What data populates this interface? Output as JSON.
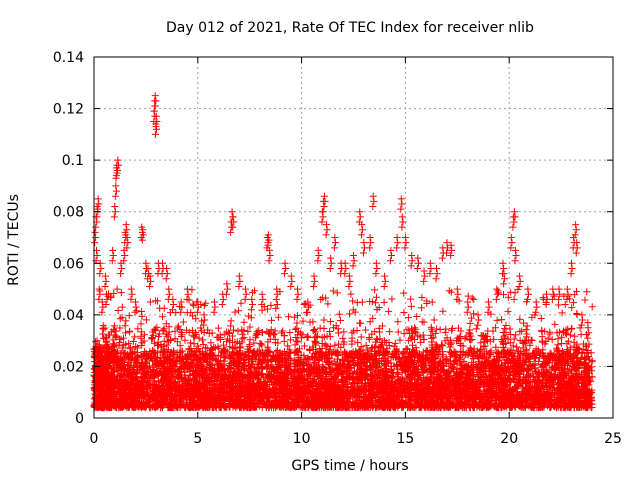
{
  "chart_data": {
    "type": "scatter",
    "title": "Day 012 of 2021, Rate Of TEC Index for receiver nlib",
    "xlabel": "GPS time / hours",
    "ylabel": "ROTI / TECUs",
    "xlim": [
      0,
      25
    ],
    "ylim": [
      0,
      0.14
    ],
    "xticks": [
      0,
      5,
      10,
      15,
      20,
      25
    ],
    "yticks": [
      0,
      0.02,
      0.04,
      0.06,
      0.08,
      0.1,
      0.12,
      0.14
    ],
    "ytick_labels": [
      "0",
      "0.02",
      "0.04",
      "0.06",
      "0.08",
      "0.1",
      "0.12",
      "0.14"
    ],
    "grid": true,
    "marker": "+",
    "marker_color": "#ff0000",
    "grid_color": "#a0a0a0",
    "series": [
      {
        "name": "ROTI",
        "points": [
          [
            0.05,
            0.072
          ],
          [
            0.1,
            0.078
          ],
          [
            0.15,
            0.082
          ],
          [
            0.2,
            0.085
          ],
          [
            0.12,
            0.065
          ],
          [
            0.3,
            0.06
          ],
          [
            0.25,
            0.05
          ],
          [
            0.4,
            0.045
          ],
          [
            0.6,
            0.048
          ],
          [
            0.55,
            0.055
          ],
          [
            0.9,
            0.065
          ],
          [
            1.0,
            0.082
          ],
          [
            1.05,
            0.09
          ],
          [
            1.1,
            0.098
          ],
          [
            1.15,
            0.1
          ],
          [
            1.08,
            0.097
          ],
          [
            1.3,
            0.06
          ],
          [
            1.5,
            0.072
          ],
          [
            1.55,
            0.075
          ],
          [
            1.6,
            0.07
          ],
          [
            1.45,
            0.065
          ],
          [
            1.8,
            0.05
          ],
          [
            2.0,
            0.045
          ],
          [
            2.3,
            0.074
          ],
          [
            2.35,
            0.073
          ],
          [
            2.5,
            0.06
          ],
          [
            2.6,
            0.058
          ],
          [
            2.9,
            0.119
          ],
          [
            2.92,
            0.123
          ],
          [
            2.95,
            0.125
          ],
          [
            2.98,
            0.114
          ],
          [
            3.0,
            0.117
          ],
          [
            2.7,
            0.055
          ],
          [
            3.1,
            0.06
          ],
          [
            3.3,
            0.06
          ],
          [
            3.5,
            0.058
          ],
          [
            3.6,
            0.05
          ],
          [
            3.8,
            0.046
          ],
          [
            4.2,
            0.045
          ],
          [
            4.5,
            0.05
          ],
          [
            5.0,
            0.045
          ],
          [
            5.3,
            0.04
          ],
          [
            5.8,
            0.045
          ],
          [
            6.2,
            0.048
          ],
          [
            6.4,
            0.052
          ],
          [
            6.6,
            0.076
          ],
          [
            6.65,
            0.08
          ],
          [
            6.7,
            0.078
          ],
          [
            7.0,
            0.055
          ],
          [
            7.3,
            0.05
          ],
          [
            7.6,
            0.046
          ],
          [
            8.1,
            0.048
          ],
          [
            8.35,
            0.07
          ],
          [
            8.4,
            0.071
          ],
          [
            8.45,
            0.065
          ],
          [
            8.8,
            0.05
          ],
          [
            9.2,
            0.06
          ],
          [
            9.5,
            0.055
          ],
          [
            9.8,
            0.05
          ],
          [
            10.3,
            0.045
          ],
          [
            10.6,
            0.055
          ],
          [
            10.8,
            0.065
          ],
          [
            11.0,
            0.08
          ],
          [
            11.05,
            0.084
          ],
          [
            11.1,
            0.086
          ],
          [
            11.2,
            0.075
          ],
          [
            11.4,
            0.062
          ],
          [
            11.6,
            0.07
          ],
          [
            11.9,
            0.06
          ],
          [
            12.1,
            0.06
          ],
          [
            12.3,
            0.055
          ],
          [
            12.5,
            0.063
          ],
          [
            12.8,
            0.08
          ],
          [
            12.9,
            0.075
          ],
          [
            13.0,
            0.068
          ],
          [
            13.3,
            0.07
          ],
          [
            13.45,
            0.086
          ],
          [
            13.6,
            0.06
          ],
          [
            14.0,
            0.055
          ],
          [
            14.3,
            0.065
          ],
          [
            14.6,
            0.07
          ],
          [
            14.8,
            0.085
          ],
          [
            14.85,
            0.078
          ],
          [
            15.0,
            0.07
          ],
          [
            15.3,
            0.063
          ],
          [
            15.6,
            0.062
          ],
          [
            15.9,
            0.057
          ],
          [
            16.2,
            0.06
          ],
          [
            16.5,
            0.058
          ],
          [
            16.8,
            0.066
          ],
          [
            17.0,
            0.068
          ],
          [
            17.2,
            0.067
          ],
          [
            17.5,
            0.05
          ],
          [
            18.0,
            0.045
          ],
          [
            18.5,
            0.04
          ],
          [
            19.0,
            0.045
          ],
          [
            19.4,
            0.05
          ],
          [
            19.7,
            0.06
          ],
          [
            19.75,
            0.056
          ],
          [
            20.1,
            0.07
          ],
          [
            20.2,
            0.078
          ],
          [
            20.25,
            0.08
          ],
          [
            20.3,
            0.065
          ],
          [
            20.5,
            0.055
          ],
          [
            20.9,
            0.05
          ],
          [
            21.3,
            0.045
          ],
          [
            21.8,
            0.048
          ],
          [
            22.1,
            0.05
          ],
          [
            22.4,
            0.05
          ],
          [
            22.8,
            0.05
          ],
          [
            23.0,
            0.06
          ],
          [
            23.1,
            0.07
          ],
          [
            23.2,
            0.075
          ],
          [
            23.25,
            0.068
          ],
          [
            23.5,
            0.04
          ],
          [
            23.8,
            0.035
          ]
        ]
      }
    ],
    "density_bands": [
      {
        "x_range": [
          0.0,
          1.0
        ],
        "y_range": [
          0.004,
          0.03
        ],
        "n": 260
      },
      {
        "x_range": [
          0.0,
          24.0
        ],
        "y_range": [
          0.004,
          0.026
        ],
        "n": 5200
      },
      {
        "x_range": [
          0.0,
          24.0
        ],
        "y_range": [
          0.008,
          0.035
        ],
        "n": 1800
      },
      {
        "x_range": [
          0.0,
          24.0
        ],
        "y_range": [
          0.01,
          0.05
        ],
        "n": 700
      }
    ]
  }
}
